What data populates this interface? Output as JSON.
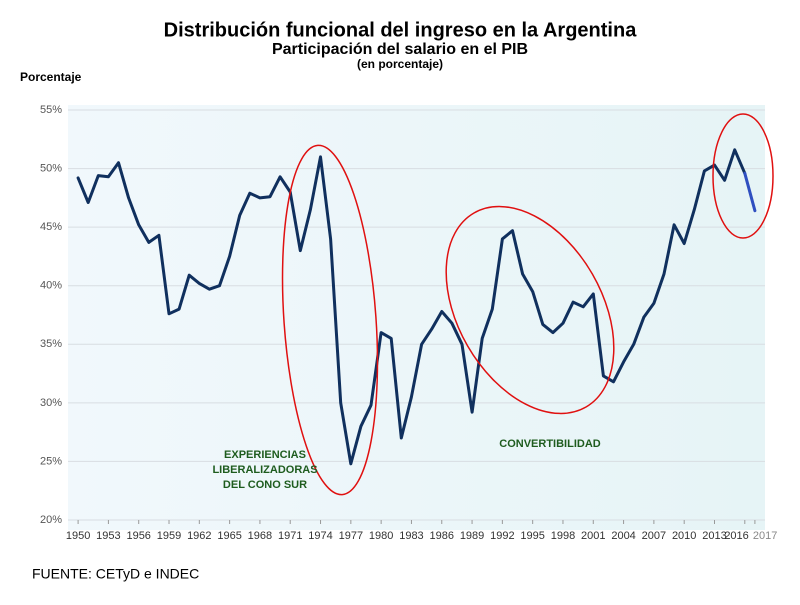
{
  "chart_data": {
    "type": "line",
    "title": "Distribución funcional del ingreso en la Argentina",
    "subtitle": "Participación del salario en el PIB",
    "subtitle2": "(en porcentaje)",
    "y_label": "Porcentaje",
    "source": "FUENTE: CETyD e INDEC",
    "annotations": [
      {
        "lines": [
          "EXPERIENCIAS",
          "LIBERALIZADORAS",
          "DEL CONO SUR"
        ],
        "color": "#1e5c1e"
      },
      {
        "lines": [
          "CONVERTIBILIDAD"
        ],
        "color": "#1e5c1e"
      }
    ],
    "x": [
      1950,
      1951,
      1952,
      1953,
      1954,
      1955,
      1956,
      1957,
      1958,
      1959,
      1960,
      1961,
      1962,
      1963,
      1964,
      1965,
      1966,
      1967,
      1968,
      1969,
      1970,
      1971,
      1972,
      1973,
      1974,
      1975,
      1976,
      1977,
      1978,
      1979,
      1980,
      1981,
      1982,
      1983,
      1984,
      1985,
      1986,
      1987,
      1988,
      1989,
      1990,
      1991,
      1992,
      1993,
      1994,
      1995,
      1996,
      1997,
      1998,
      1999,
      2000,
      2001,
      2002,
      2003,
      2004,
      2005,
      2006,
      2007,
      2008,
      2009,
      2010,
      2011,
      2012,
      2013,
      2014,
      2015,
      2016,
      2017
    ],
    "series": [
      {
        "color": "#10305e",
        "values": [
          49.2,
          47.1,
          49.4,
          49.3,
          50.5,
          47.5,
          45.2,
          43.7,
          44.3,
          37.6,
          38.0,
          40.9,
          40.2,
          39.7,
          40.0,
          42.5,
          46.0,
          47.9,
          47.5,
          47.6,
          49.3,
          48.0,
          43.0,
          46.5,
          51.0,
          44.0,
          30.0,
          24.8,
          28.0,
          29.8,
          36.0,
          35.5,
          27.0,
          30.5,
          35.0,
          36.3,
          37.8,
          36.8,
          35.0,
          29.2,
          35.5,
          38.0,
          44.0,
          44.7,
          41.0,
          39.5,
          36.7,
          36.0,
          36.8,
          38.6,
          38.2,
          39.3,
          32.3,
          31.8,
          33.5,
          35.0,
          37.3,
          38.5,
          41.0,
          45.2,
          43.6,
          46.5,
          49.8,
          50.3,
          49.0,
          51.6,
          49.6,
          null
        ]
      },
      {
        "color": "#2f4fc0",
        "values": [
          null,
          null,
          null,
          null,
          null,
          null,
          null,
          null,
          null,
          null,
          null,
          null,
          null,
          null,
          null,
          null,
          null,
          null,
          null,
          null,
          null,
          null,
          null,
          null,
          null,
          null,
          null,
          null,
          null,
          null,
          null,
          null,
          null,
          null,
          null,
          null,
          null,
          null,
          null,
          null,
          null,
          null,
          null,
          null,
          null,
          null,
          null,
          null,
          null,
          null,
          null,
          null,
          null,
          null,
          null,
          null,
          null,
          null,
          null,
          null,
          null,
          null,
          null,
          null,
          null,
          null,
          49.6,
          46.4
        ]
      }
    ],
    "xlim": [
      1949,
      2018
    ],
    "xticks": [
      1950,
      1953,
      1956,
      1959,
      1962,
      1965,
      1968,
      1971,
      1974,
      1977,
      1980,
      1983,
      1986,
      1989,
      1992,
      1995,
      1998,
      2001,
      2004,
      2007,
      2010,
      2013,
      2016,
      2017
    ],
    "ylim": [
      20,
      55
    ],
    "yticks": [
      {
        "value": 20,
        "label": "20%"
      },
      {
        "value": 25,
        "label": "25%"
      },
      {
        "value": 30,
        "label": "30%"
      },
      {
        "value": 35,
        "label": "35%"
      },
      {
        "value": 40,
        "label": "40%"
      },
      {
        "value": 45,
        "label": "45%"
      },
      {
        "value": 50,
        "label": "50%"
      },
      {
        "value": 55,
        "label": "55%"
      }
    ],
    "grid": true
  }
}
